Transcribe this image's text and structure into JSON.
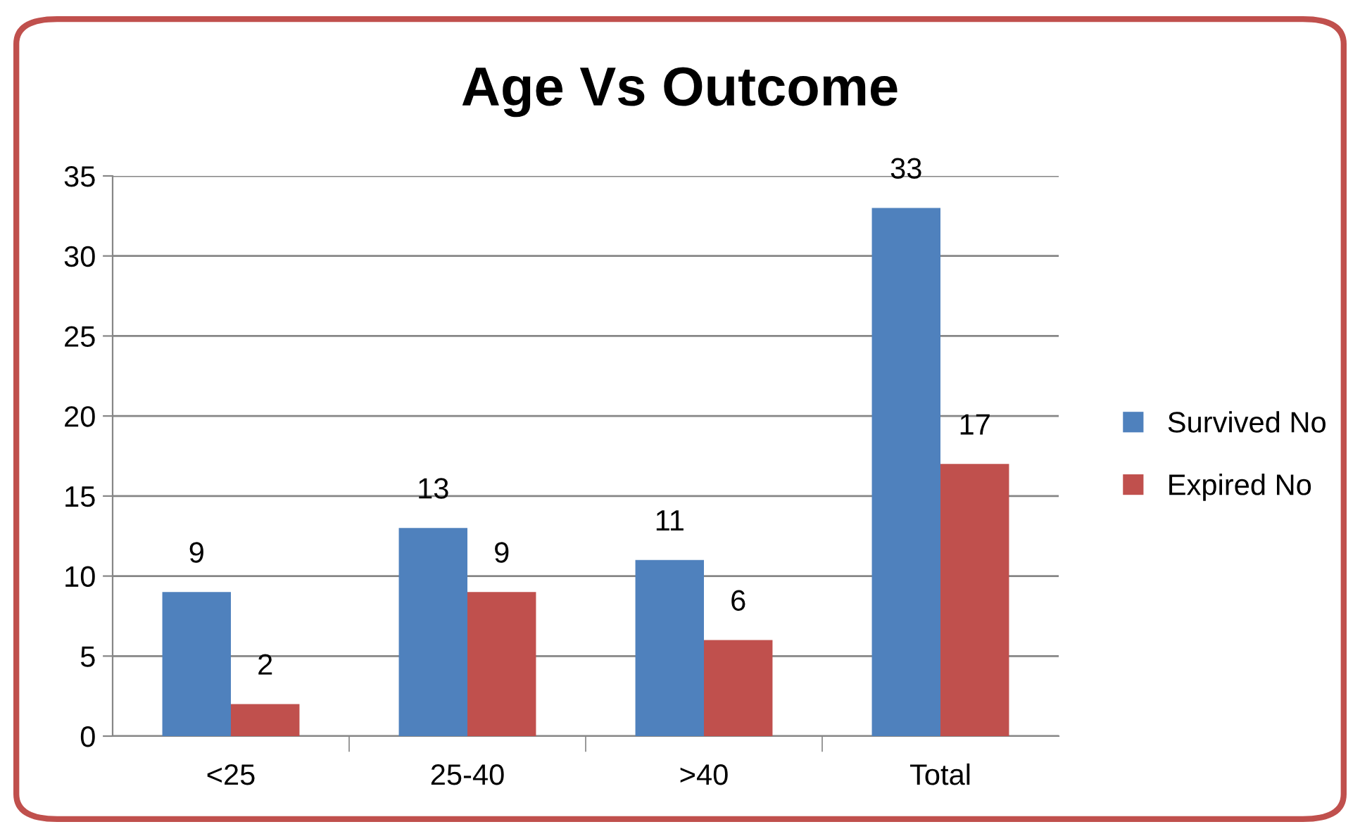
{
  "chart_data": {
    "type": "bar",
    "title": "Age Vs Outcome",
    "categories": [
      "<25",
      "25-40",
      ">40",
      "Total"
    ],
    "series": [
      {
        "name": "Survived No",
        "color": "#4f81bd",
        "values": [
          9,
          13,
          11,
          33
        ]
      },
      {
        "name": "Expired No",
        "color": "#c0504d",
        "values": [
          2,
          9,
          6,
          17
        ]
      }
    ],
    "ylim": [
      0,
      35
    ],
    "yticks": [
      0,
      5,
      10,
      15,
      20,
      25,
      30,
      35
    ],
    "grid": "y",
    "legend": "right",
    "data_labels": true
  }
}
